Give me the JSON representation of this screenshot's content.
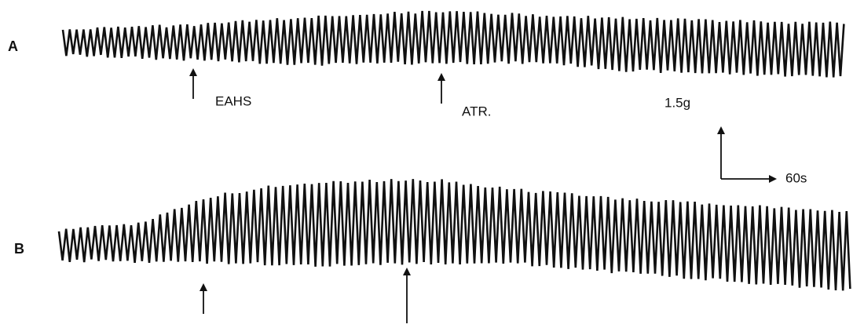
{
  "panels": [
    {
      "label": "A",
      "annotations": [
        "EAHS",
        "ATR."
      ]
    },
    {
      "label": "B"
    }
  ],
  "scale_bar": {
    "vertical": "1.5g",
    "horizontal": "60s"
  }
}
